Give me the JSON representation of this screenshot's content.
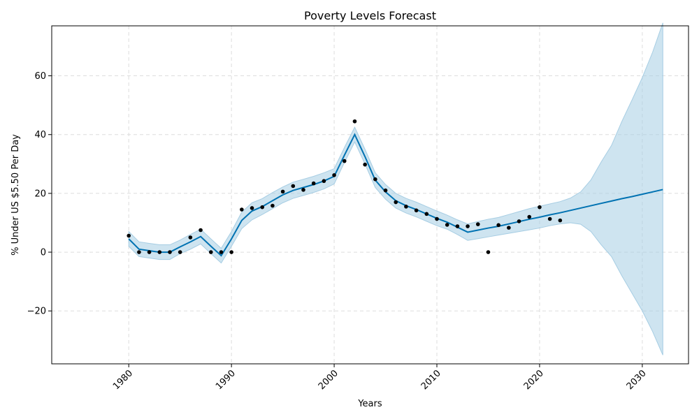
{
  "chart_data": {
    "type": "line",
    "title": "Poverty Levels Forecast",
    "xlabel": "Years",
    "ylabel": "% Under US $5.50 Per Day",
    "xlim": [
      1972.5,
      2034.5
    ],
    "ylim": [
      -38,
      77
    ],
    "x_ticks": [
      1980,
      1990,
      2000,
      2010,
      2020,
      2030
    ],
    "y_ticks": [
      -20,
      0,
      20,
      40,
      60
    ],
    "grid": true,
    "colors": {
      "forecast_line": "#0072b2",
      "interval_fill": "#a6cde3",
      "observed_points": "#000000",
      "grid": "#dddddd"
    },
    "observed": {
      "x": [
        1980,
        1981,
        1982,
        1983,
        1984,
        1985,
        1986,
        1987,
        1988,
        1989,
        1990,
        1991,
        1992,
        1993,
        1994,
        1995,
        1996,
        1997,
        1998,
        1999,
        2000,
        2001,
        2002,
        2003,
        2004,
        2005,
        2006,
        2007,
        2008,
        2009,
        2010,
        2011,
        2012,
        2013,
        2014,
        2015,
        2016,
        2017,
        2018,
        2019,
        2020,
        2021,
        2022
      ],
      "y": [
        5.6,
        0,
        0,
        0,
        0,
        0,
        5,
        7.5,
        0,
        0,
        0,
        14.5,
        15,
        15.3,
        15.8,
        20.6,
        22.5,
        21.2,
        23.4,
        24.2,
        26.2,
        31,
        44.5,
        29.8,
        24.8,
        21,
        17,
        15.5,
        14.2,
        13,
        11.3,
        9.3,
        8.8,
        8.8,
        9.5,
        0,
        9.2,
        8.3,
        10.5,
        12,
        15.3,
        11.3,
        10.8
      ]
    },
    "forecast": {
      "x": [
        1980,
        1981,
        1982,
        1983,
        1984,
        1985,
        1986,
        1987,
        1988,
        1989,
        1990,
        1991,
        1992,
        1993,
        1994,
        1995,
        1996,
        1997,
        1998,
        1999,
        2000,
        2001,
        2002,
        2003,
        2004,
        2005,
        2006,
        2007,
        2008,
        2009,
        2010,
        2011,
        2012,
        2013,
        2014,
        2015,
        2016,
        2017,
        2018,
        2019,
        2020,
        2021,
        2022,
        2023,
        2024,
        2025,
        2026,
        2027,
        2028,
        2029,
        2030,
        2031,
        2032
      ],
      "y": [
        4.5,
        1,
        0.5,
        0,
        0,
        1.8,
        3.5,
        5.3,
        2,
        -1.2,
        4.5,
        10.8,
        14,
        15.5,
        17.5,
        19.5,
        21,
        22,
        23,
        24.2,
        25.8,
        33,
        40,
        32.5,
        24.5,
        20.5,
        17.5,
        15.8,
        14.5,
        13,
        11.5,
        10.2,
        8.5,
        6.8,
        7.5,
        8.2,
        8.8,
        9.6,
        10.4,
        11.2,
        11.9,
        12.7,
        13.4,
        14.2,
        15,
        15.8,
        16.6,
        17.4,
        18.2,
        18.9,
        19.7,
        20.5,
        21.3
      ],
      "lower": [
        2,
        -1.5,
        -2,
        -2.5,
        -2.5,
        -0.5,
        1,
        2.8,
        -0.5,
        -3.7,
        2,
        8,
        11,
        12.8,
        14.8,
        16.8,
        18.3,
        19.3,
        20.3,
        21.5,
        23.2,
        30.5,
        37.5,
        30,
        22,
        18,
        15,
        13.3,
        12,
        10.5,
        9,
        7.8,
        6,
        4,
        4.6,
        5.2,
        5.8,
        6.4,
        7,
        7.6,
        8.2,
        9,
        9.6,
        10,
        9.5,
        7,
        2.5,
        -1.5,
        -8,
        -14,
        -20,
        -27,
        -35
      ],
      "upper": [
        7,
        3.5,
        3,
        2.5,
        2.5,
        4.1,
        6,
        7.8,
        4.5,
        1.3,
        7,
        13.6,
        16.8,
        18.2,
        20.3,
        22.2,
        23.8,
        24.8,
        25.8,
        27,
        28.4,
        35.6,
        42.5,
        35,
        27,
        23,
        20,
        18.3,
        17,
        15.5,
        14,
        12.6,
        11,
        9.6,
        10.4,
        11.2,
        11.8,
        12.8,
        13.8,
        14.8,
        15.6,
        16.4,
        17.2,
        18.4,
        20.5,
        24.6,
        30.7,
        36.3,
        44.4,
        51.8,
        59.4,
        68,
        78
      ]
    }
  }
}
